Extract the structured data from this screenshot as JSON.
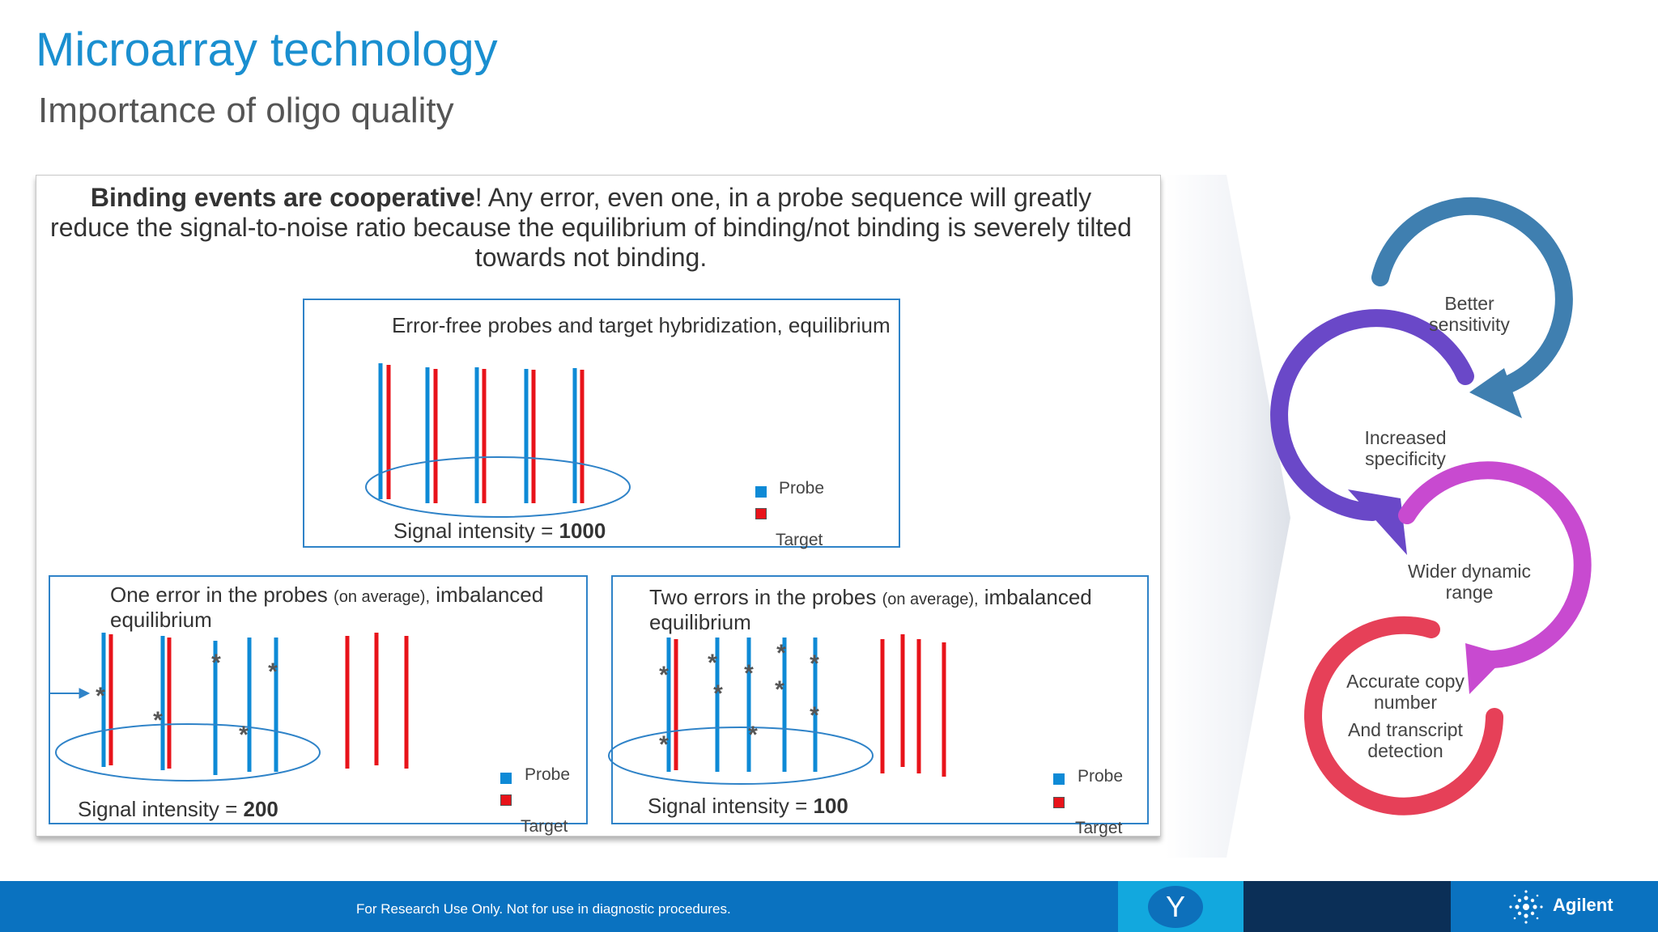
{
  "title": "Microarray technology",
  "subtitle": "Importance of oligo quality",
  "intro": {
    "bold": "Binding events are cooperative",
    "rest": "! Any error, even one, in a probe sequence will greatly reduce the signal-to-noise ratio because the equilibrium of binding/not binding is severely tilted towards not binding."
  },
  "panel_top": {
    "heading": "Error-free probes and target hybridization, equilibrium",
    "signal_label": "Signal intensity = ",
    "signal_value": "1000"
  },
  "panel_left": {
    "heading_a": "One error in the probes ",
    "heading_small": "(on average),",
    "heading_b": " imbalanced",
    "heading_line2": "equilibrium",
    "signal_label": "Signal intensity = ",
    "signal_value": "200"
  },
  "panel_right": {
    "heading_a": "Two errors in the probes ",
    "heading_small": "(on average),",
    "heading_b": " imbalanced",
    "heading_line2": "equilibrium",
    "signal_label": "Signal intensity = ",
    "signal_value": "100"
  },
  "legend": {
    "probe": "Probe",
    "target": "Target"
  },
  "error_mark": "*",
  "cycle": {
    "better_l1": "Better",
    "better_l2": "sensitivity",
    "increased_l1": "Increased",
    "increased_l2": "specificity",
    "wider_l1": "Wider dynamic",
    "wider_l2": "range",
    "accurate_l1": "Accurate copy",
    "accurate_l2": "number",
    "accurate_l3": "And transcript",
    "accurate_l4": "detection"
  },
  "footer": {
    "disclaimer": "For Research Use Only. Not for use in diagnostic procedures.",
    "badge": "Y",
    "logo": "Agilent"
  },
  "colors": {
    "title": "#1a8fd0",
    "probe": "#0e8ad6",
    "target": "#e8131a",
    "box_border": "#2f83c8",
    "arrow_blue": "#3f7fb0",
    "arrow_purple": "#6a48c8",
    "arrow_magenta": "#c84ad0",
    "arrow_red": "#e64058",
    "footer": "#0a72c0"
  }
}
